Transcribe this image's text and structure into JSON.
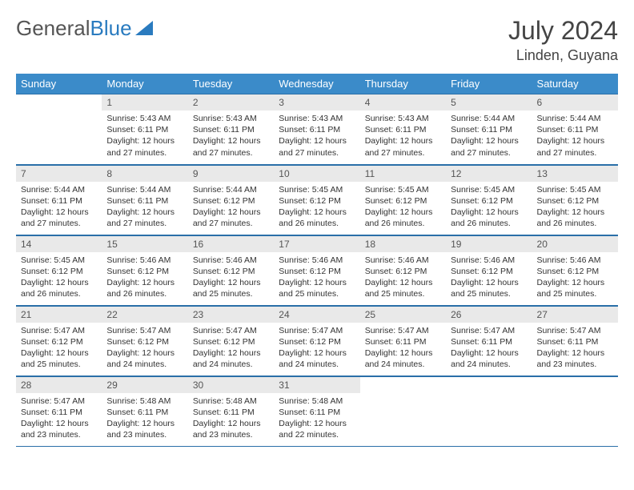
{
  "logo": {
    "text1": "General",
    "text2": "Blue"
  },
  "title": "July 2024",
  "location": "Linden, Guyana",
  "colors": {
    "header_bg": "#3b8bc9",
    "border": "#2a6fa8",
    "daynum_bg": "#e9e9e9",
    "logo_gray": "#555555",
    "logo_blue": "#2a7bbf"
  },
  "weekdays": [
    "Sunday",
    "Monday",
    "Tuesday",
    "Wednesday",
    "Thursday",
    "Friday",
    "Saturday"
  ],
  "weeks": [
    [
      null,
      {
        "n": "1",
        "sr": "5:43 AM",
        "ss": "6:11 PM",
        "dl": "12 hours and 27 minutes."
      },
      {
        "n": "2",
        "sr": "5:43 AM",
        "ss": "6:11 PM",
        "dl": "12 hours and 27 minutes."
      },
      {
        "n": "3",
        "sr": "5:43 AM",
        "ss": "6:11 PM",
        "dl": "12 hours and 27 minutes."
      },
      {
        "n": "4",
        "sr": "5:43 AM",
        "ss": "6:11 PM",
        "dl": "12 hours and 27 minutes."
      },
      {
        "n": "5",
        "sr": "5:44 AM",
        "ss": "6:11 PM",
        "dl": "12 hours and 27 minutes."
      },
      {
        "n": "6",
        "sr": "5:44 AM",
        "ss": "6:11 PM",
        "dl": "12 hours and 27 minutes."
      }
    ],
    [
      {
        "n": "7",
        "sr": "5:44 AM",
        "ss": "6:11 PM",
        "dl": "12 hours and 27 minutes."
      },
      {
        "n": "8",
        "sr": "5:44 AM",
        "ss": "6:11 PM",
        "dl": "12 hours and 27 minutes."
      },
      {
        "n": "9",
        "sr": "5:44 AM",
        "ss": "6:12 PM",
        "dl": "12 hours and 27 minutes."
      },
      {
        "n": "10",
        "sr": "5:45 AM",
        "ss": "6:12 PM",
        "dl": "12 hours and 26 minutes."
      },
      {
        "n": "11",
        "sr": "5:45 AM",
        "ss": "6:12 PM",
        "dl": "12 hours and 26 minutes."
      },
      {
        "n": "12",
        "sr": "5:45 AM",
        "ss": "6:12 PM",
        "dl": "12 hours and 26 minutes."
      },
      {
        "n": "13",
        "sr": "5:45 AM",
        "ss": "6:12 PM",
        "dl": "12 hours and 26 minutes."
      }
    ],
    [
      {
        "n": "14",
        "sr": "5:45 AM",
        "ss": "6:12 PM",
        "dl": "12 hours and 26 minutes."
      },
      {
        "n": "15",
        "sr": "5:46 AM",
        "ss": "6:12 PM",
        "dl": "12 hours and 26 minutes."
      },
      {
        "n": "16",
        "sr": "5:46 AM",
        "ss": "6:12 PM",
        "dl": "12 hours and 25 minutes."
      },
      {
        "n": "17",
        "sr": "5:46 AM",
        "ss": "6:12 PM",
        "dl": "12 hours and 25 minutes."
      },
      {
        "n": "18",
        "sr": "5:46 AM",
        "ss": "6:12 PM",
        "dl": "12 hours and 25 minutes."
      },
      {
        "n": "19",
        "sr": "5:46 AM",
        "ss": "6:12 PM",
        "dl": "12 hours and 25 minutes."
      },
      {
        "n": "20",
        "sr": "5:46 AM",
        "ss": "6:12 PM",
        "dl": "12 hours and 25 minutes."
      }
    ],
    [
      {
        "n": "21",
        "sr": "5:47 AM",
        "ss": "6:12 PM",
        "dl": "12 hours and 25 minutes."
      },
      {
        "n": "22",
        "sr": "5:47 AM",
        "ss": "6:12 PM",
        "dl": "12 hours and 24 minutes."
      },
      {
        "n": "23",
        "sr": "5:47 AM",
        "ss": "6:12 PM",
        "dl": "12 hours and 24 minutes."
      },
      {
        "n": "24",
        "sr": "5:47 AM",
        "ss": "6:12 PM",
        "dl": "12 hours and 24 minutes."
      },
      {
        "n": "25",
        "sr": "5:47 AM",
        "ss": "6:11 PM",
        "dl": "12 hours and 24 minutes."
      },
      {
        "n": "26",
        "sr": "5:47 AM",
        "ss": "6:11 PM",
        "dl": "12 hours and 24 minutes."
      },
      {
        "n": "27",
        "sr": "5:47 AM",
        "ss": "6:11 PM",
        "dl": "12 hours and 23 minutes."
      }
    ],
    [
      {
        "n": "28",
        "sr": "5:47 AM",
        "ss": "6:11 PM",
        "dl": "12 hours and 23 minutes."
      },
      {
        "n": "29",
        "sr": "5:48 AM",
        "ss": "6:11 PM",
        "dl": "12 hours and 23 minutes."
      },
      {
        "n": "30",
        "sr": "5:48 AM",
        "ss": "6:11 PM",
        "dl": "12 hours and 23 minutes."
      },
      {
        "n": "31",
        "sr": "5:48 AM",
        "ss": "6:11 PM",
        "dl": "12 hours and 22 minutes."
      },
      null,
      null,
      null
    ]
  ],
  "labels": {
    "sunrise": "Sunrise:",
    "sunset": "Sunset:",
    "daylight": "Daylight:"
  }
}
